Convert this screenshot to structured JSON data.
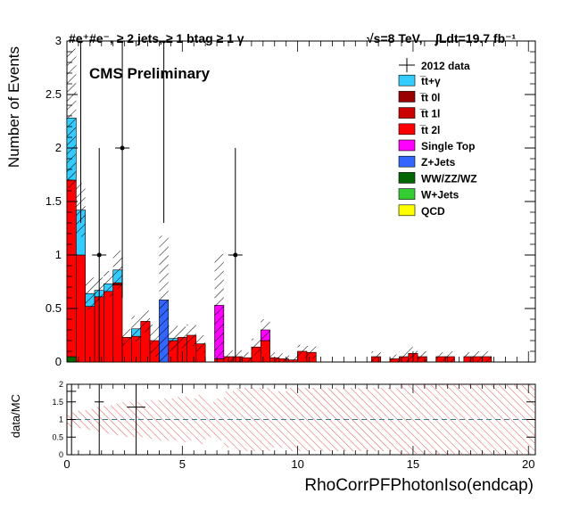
{
  "header": {
    "selection": "#e⁺#e⁻, ≥ 2 jets, ≥ 1 btag ≥ 1 γ",
    "energy": "√s=8 TeV,",
    "lumi": "∫Ldt=19.7 fb⁻¹",
    "preliminary": "CMS Preliminary"
  },
  "colors": {
    "ttgamma": "#33ccff",
    "tt0l": "#990000",
    "tt1l": "#cc0000",
    "tt2l": "#ff0000",
    "single_top": "#ff00ff",
    "zjets": "#3366ff",
    "vv": "#006600",
    "wjets": "#33cc33",
    "qcd": "#ffff00",
    "unc_hatch": "#000000",
    "ratio_hatch": "#e25a5a",
    "ratio_line": "#3a7a8a"
  },
  "chart_data": [
    {
      "type": "bar",
      "stacked": true,
      "xlabel": "RhoCorrPFPhotonIso(endcap)",
      "ylabel": "Number of Events",
      "xlim": [
        0,
        20.3
      ],
      "ylim": [
        0,
        3.0
      ],
      "x_ticks": [
        "0",
        "5",
        "10",
        "15",
        "20"
      ],
      "y_ticks": [
        "0",
        "0.5",
        "1",
        "1.5",
        "2",
        "2.5",
        "3"
      ],
      "bin_width": 0.4,
      "bin_edges_start": 0.0,
      "legend_position": "top-right",
      "series": [
        {
          "name": "t̅t+γ",
          "key": "ttgamma",
          "color": "#33ccff",
          "values": [
            0.58,
            0.42,
            0.12,
            0.06,
            0.07,
            0.12,
            0,
            0.07,
            0,
            0,
            0,
            0.02,
            0,
            0,
            0,
            0,
            0,
            0,
            0,
            0,
            0,
            0,
            0,
            0,
            0,
            0,
            0,
            0,
            0,
            0,
            0,
            0,
            0,
            0,
            0,
            0,
            0,
            0,
            0,
            0,
            0,
            0,
            0,
            0,
            0,
            0,
            0,
            0,
            0,
            0,
            0
          ]
        },
        {
          "name": "t̅t 0l",
          "key": "tt0l",
          "color": "#990000",
          "values": [
            0,
            0,
            0,
            0,
            0,
            0.02,
            0,
            0,
            0,
            0,
            0,
            0,
            0,
            0,
            0,
            0,
            0,
            0,
            0,
            0,
            0,
            0,
            0,
            0,
            0,
            0,
            0,
            0,
            0,
            0,
            0,
            0,
            0,
            0,
            0,
            0,
            0,
            0,
            0,
            0,
            0,
            0,
            0,
            0,
            0,
            0,
            0,
            0,
            0,
            0,
            0
          ]
        },
        {
          "name": "t̅t 1l",
          "key": "tt1l",
          "color": "#cc0000",
          "values": [
            0,
            0,
            0,
            0,
            0,
            0,
            0,
            0,
            0,
            0,
            0,
            0,
            0,
            0,
            0,
            0,
            0,
            0,
            0,
            0,
            0,
            0,
            0,
            0,
            0,
            0,
            0,
            0,
            0,
            0,
            0,
            0,
            0,
            0,
            0,
            0,
            0,
            0,
            0,
            0,
            0,
            0,
            0,
            0,
            0,
            0,
            0,
            0,
            0,
            0,
            0
          ]
        },
        {
          "name": "t̅t 2l",
          "key": "tt2l",
          "color": "#ff0000",
          "values": [
            1.65,
            1.0,
            0.52,
            0.61,
            0.66,
            0.72,
            0.23,
            0.24,
            0.38,
            0.2,
            0,
            0.2,
            0.23,
            0.25,
            0.17,
            0,
            0.03,
            0.05,
            0.05,
            0.04,
            0.14,
            0.2,
            0.04,
            0.03,
            0.02,
            0.1,
            0.09,
            0,
            0,
            0,
            0,
            0,
            0,
            0.05,
            0,
            0.03,
            0.05,
            0.08,
            0.05,
            0,
            0.05,
            0.05,
            0,
            0.05,
            0.05,
            0.05,
            0,
            0,
            0,
            0,
            0
          ]
        },
        {
          "name": "Single Top",
          "key": "single_top",
          "color": "#ff00ff",
          "values": [
            0,
            0,
            0,
            0,
            0,
            0,
            0,
            0,
            0,
            0,
            0,
            0,
            0,
            0,
            0,
            0,
            0.5,
            0,
            0,
            0,
            0,
            0.1,
            0,
            0,
            0,
            0,
            0,
            0,
            0,
            0,
            0,
            0,
            0,
            0,
            0,
            0,
            0,
            0,
            0,
            0,
            0,
            0,
            0,
            0,
            0,
            0,
            0,
            0,
            0,
            0,
            0
          ]
        },
        {
          "name": "Z+Jets",
          "key": "zjets",
          "color": "#3366ff",
          "values": [
            0,
            0,
            0,
            0,
            0,
            0,
            0,
            0,
            0,
            0,
            0.58,
            0,
            0,
            0,
            0,
            0,
            0,
            0,
            0,
            0,
            0,
            0,
            0,
            0,
            0,
            0,
            0,
            0,
            0,
            0,
            0,
            0,
            0,
            0,
            0,
            0,
            0,
            0,
            0,
            0,
            0,
            0,
            0,
            0,
            0,
            0,
            0,
            0,
            0,
            0,
            0
          ]
        },
        {
          "name": "WW/ZZ/WZ",
          "key": "vv",
          "color": "#006600",
          "values": [
            0.05,
            0,
            0,
            0,
            0,
            0,
            0,
            0,
            0,
            0,
            0,
            0,
            0,
            0,
            0,
            0,
            0,
            0,
            0,
            0,
            0,
            0,
            0,
            0,
            0,
            0,
            0,
            0,
            0,
            0,
            0,
            0,
            0,
            0,
            0,
            0,
            0,
            0,
            0,
            0,
            0,
            0,
            0,
            0,
            0,
            0,
            0,
            0,
            0,
            0,
            0
          ]
        },
        {
          "name": "W+Jets",
          "key": "wjets",
          "color": "#33cc33",
          "values": [
            0,
            0,
            0,
            0,
            0,
            0,
            0,
            0,
            0,
            0,
            0,
            0,
            0,
            0,
            0,
            0,
            0,
            0,
            0,
            0,
            0,
            0,
            0,
            0,
            0,
            0,
            0,
            0,
            0,
            0,
            0,
            0,
            0,
            0,
            0,
            0,
            0,
            0,
            0,
            0,
            0,
            0,
            0,
            0,
            0,
            0,
            0,
            0,
            0,
            0,
            0
          ]
        },
        {
          "name": "QCD",
          "key": "qcd",
          "color": "#ffff00",
          "values": [
            0,
            0,
            0,
            0,
            0,
            0,
            0,
            0,
            0,
            0,
            0,
            0,
            0,
            0,
            0,
            0,
            0,
            0,
            0,
            0,
            0,
            0,
            0,
            0,
            0,
            0,
            0,
            0,
            0,
            0,
            0,
            0,
            0,
            0,
            0,
            0,
            0,
            0,
            0,
            0,
            0,
            0,
            0,
            0,
            0,
            0,
            0,
            0,
            0,
            0,
            0
          ]
        }
      ],
      "mc_uncertainty": [
        0.65,
        0.25,
        0.15,
        0.12,
        0.12,
        0.18,
        0.08,
        0.12,
        0.1,
        0.15,
        0.6,
        0.12,
        0.1,
        0.1,
        0.08,
        0,
        0.48,
        0.06,
        0.06,
        0.05,
        0.08,
        0.1,
        0.05,
        0.05,
        0.04,
        0.06,
        0.06,
        0,
        0,
        0,
        0,
        0,
        0,
        0.05,
        0,
        0.04,
        0.05,
        0.06,
        0.05,
        0,
        0.04,
        0.05,
        0,
        0.04,
        0.05,
        0.05,
        0,
        0,
        0,
        0,
        0
      ],
      "data_points": {
        "name": "2012 data",
        "x": [
          0.6,
          1.4,
          2.4,
          4.2,
          7.3
        ],
        "y": [
          3,
          1,
          2,
          3,
          1
        ],
        "yerr": [
          1.7,
          1.0,
          1.4,
          1.7,
          1.0
        ]
      }
    },
    {
      "type": "line",
      "ylabel": "data/MC",
      "xlim": [
        0,
        20.3
      ],
      "ylim": [
        0,
        2
      ],
      "x_ticks": [
        "0",
        "5",
        "10",
        "15",
        "20"
      ],
      "y_ticks": [
        "0",
        "0.5",
        "1",
        "1.5",
        "2"
      ],
      "reference_line": 1.0,
      "points": {
        "x": [
          0.2,
          1.4,
          3.0
        ],
        "y": [
          1.8,
          1.5,
          1.35
        ],
        "xerr": [
          0.2,
          0.2,
          0.4
        ]
      },
      "uncertainty_band_halfwidth": [
        0.2,
        0.25,
        0.3,
        0.35,
        0.4,
        0.45,
        0.5,
        0.5,
        0.5,
        0.55,
        0.6,
        0.6,
        0.65,
        0.6,
        0.7,
        0.5,
        0.6,
        0.8,
        0.9,
        0.9,
        0.9,
        0.9,
        0.8,
        0.8,
        0.9,
        0.9,
        0.9,
        0.9,
        0.9,
        0.9,
        0.9,
        0.9,
        0.9,
        0.9,
        0.9,
        0.9,
        1.0,
        1.0,
        1.0,
        1.0,
        1.0,
        1.0,
        1.0,
        1.0,
        1.0,
        1.0,
        1.0,
        1.0,
        1.0,
        1.0,
        1.0
      ],
      "band_gaps": [
        [
          15.3,
          15.7
        ],
        [
          16.8,
          17.1
        ],
        [
          19.4,
          19.8
        ]
      ]
    }
  ]
}
